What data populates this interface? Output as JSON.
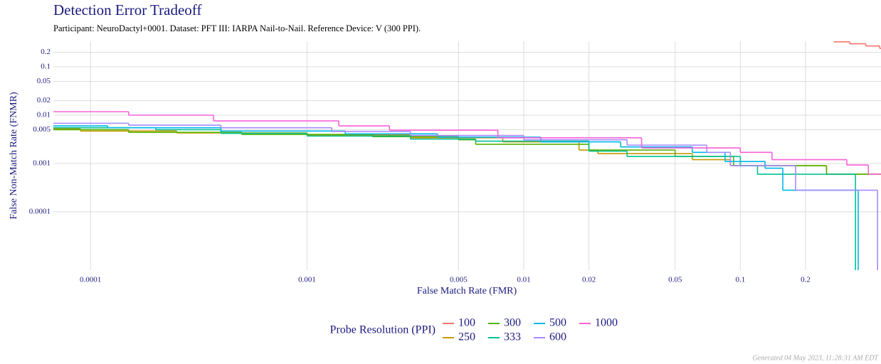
{
  "chart_data": {
    "type": "step",
    "title": "Detection Error Tradeoff",
    "subtitle": "Participant: NeuroDactyl+0001. Dataset: PFT III: IARPA Nail-to-Nail. Reference Device: V (300 PPI).",
    "x_label": "False Match Rate (FMR)",
    "y_label": "False Non-Match Rate (FNMR)",
    "legend_title": "Probe Resolution (PPI)",
    "footer": "Generated 04 May 2023, 11:28:31 AM EDT",
    "log_x": true,
    "log_y": true,
    "grid": true,
    "legend_position": "bottom",
    "xlim": [
      6.74e-05,
      0.446
    ],
    "ylim": [
      6.2e-06,
      0.339
    ],
    "xticks": [
      0.0001,
      0.001,
      0.005,
      0.01,
      0.02,
      0.05,
      0.1,
      0.2
    ],
    "yticks": [
      0.0001,
      0.001,
      0.005,
      0.01,
      0.02,
      0.05,
      0.1,
      0.2
    ],
    "series": [
      {
        "name": "100",
        "color": "#F8766D",
        "x": [
          0.27,
          0.32,
          0.38,
          0.44
        ],
        "values": [
          0.33,
          0.3,
          0.27,
          0.24
        ]
      },
      {
        "name": "250",
        "color": "#C49A00",
        "x": [
          6.74e-05,
          9e-05,
          0.00025,
          0.001,
          0.003,
          0.008,
          0.018,
          0.022,
          0.06,
          0.09,
          0.25
        ],
        "values": [
          0.0052,
          0.0047,
          0.0043,
          0.0039,
          0.0034,
          0.0028,
          0.0019,
          0.0016,
          0.0012,
          0.0009,
          0.0006
        ]
      },
      {
        "name": "300",
        "color": "#53B400",
        "x": [
          6.74e-05,
          0.00015,
          0.0005,
          0.002,
          0.005,
          0.006,
          0.02,
          0.05,
          0.093,
          0.25
        ],
        "values": [
          0.005,
          0.0044,
          0.004,
          0.0036,
          0.0031,
          0.0025,
          0.0019,
          0.0014,
          0.0009,
          0.0006
        ]
      },
      {
        "name": "333",
        "color": "#00C094",
        "x": [
          6.74e-05,
          0.0002,
          0.0004,
          0.001,
          0.003,
          0.006,
          0.02,
          0.03,
          0.1,
          0.12,
          0.34
        ],
        "values": [
          0.0055,
          0.005,
          0.0042,
          0.0037,
          0.0032,
          0.0029,
          0.0018,
          0.0014,
          0.0009,
          0.0006,
          1e-06
        ]
      },
      {
        "name": "500",
        "color": "#00B6EB",
        "x": [
          6.74e-05,
          0.00012,
          0.0004,
          0.0015,
          0.004,
          0.012,
          0.028,
          0.06,
          0.085,
          0.13,
          0.157,
          0.35
        ],
        "values": [
          0.006,
          0.0055,
          0.0047,
          0.0041,
          0.0035,
          0.0028,
          0.0022,
          0.0017,
          0.0011,
          0.0008,
          0.00028,
          1e-06
        ]
      },
      {
        "name": "600",
        "color": "#A58AFF",
        "x": [
          6.74e-05,
          0.00015,
          0.0004,
          0.0013,
          0.003,
          0.01,
          0.03,
          0.07,
          0.09,
          0.14,
          0.18,
          0.43
        ],
        "values": [
          0.0068,
          0.0062,
          0.0055,
          0.0046,
          0.0038,
          0.0031,
          0.0024,
          0.0017,
          0.0009,
          0.0009,
          0.00028,
          1e-06
        ]
      },
      {
        "name": "1000",
        "color": "#FB61D7",
        "x": [
          6.74e-05,
          0.00015,
          0.00037,
          0.0014,
          0.0024,
          0.0076,
          0.035,
          0.1,
          0.14,
          0.31,
          0.39
        ],
        "values": [
          0.0118,
          0.01,
          0.0076,
          0.006,
          0.0049,
          0.0034,
          0.0021,
          0.0017,
          0.0012,
          0.00093,
          0.0006
        ]
      }
    ]
  }
}
